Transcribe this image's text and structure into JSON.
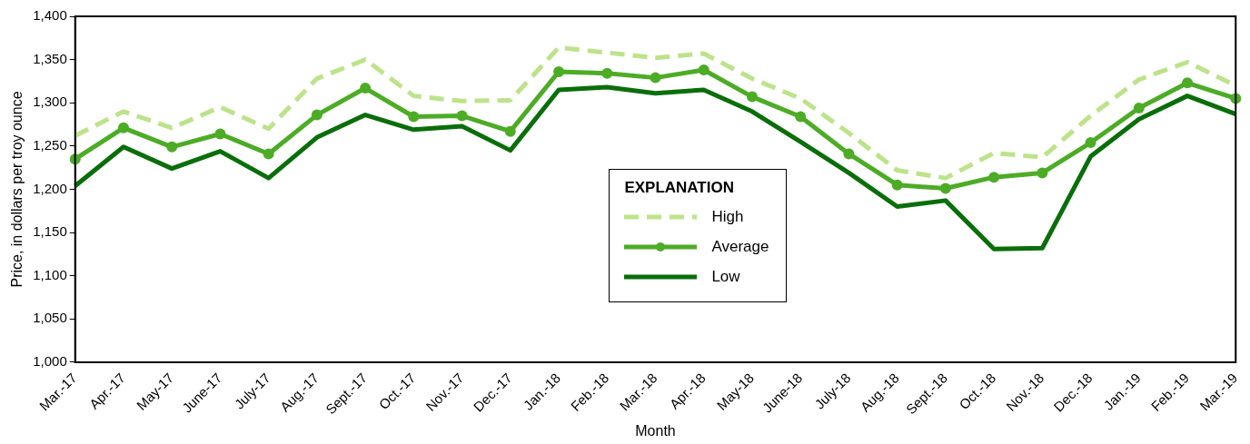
{
  "chart_data": {
    "type": "line",
    "xlabel": "Month",
    "ylabel": "Price, in dollars per troy ounce",
    "legend_title": "EXPLANATION",
    "legend": "center",
    "grid": false,
    "categories": [
      "Mar.-17",
      "Apr.-17",
      "May-17",
      "June-17",
      "July-17",
      "Aug.-17",
      "Sept.-17",
      "Oct.-17",
      "Nov.-17",
      "Dec.-17",
      "Jan.-18",
      "Feb.-18",
      "Mar.-18",
      "Apr.-18",
      "May-18",
      "June-18",
      "July-18",
      "Aug.-18",
      "Sept.-18",
      "Oct.-18",
      "Nov.-18",
      "Dec.-18",
      "Jan.-19",
      "Feb.-19",
      "Mar.-19"
    ],
    "ylim": [
      1000,
      1400
    ],
    "yticks": [
      {
        "value": 1000,
        "label": "1,000"
      },
      {
        "value": 1050,
        "label": "1,050"
      },
      {
        "value": 1100,
        "label": "1,100"
      },
      {
        "value": 1150,
        "label": "1,150"
      },
      {
        "value": 1200,
        "label": "1,200"
      },
      {
        "value": 1250,
        "label": "1,250"
      },
      {
        "value": 1300,
        "label": "1,300"
      },
      {
        "value": 1350,
        "label": "1,350"
      },
      {
        "value": 1400,
        "label": "1,400"
      }
    ],
    "series": [
      {
        "name": "High",
        "color": "#bde38a",
        "line_style": "dashed",
        "marker": "none",
        "values": [
          1262,
          1290,
          1271,
          1295,
          1270,
          1328,
          1350,
          1308,
          1302,
          1303,
          1364,
          1358,
          1352,
          1357,
          1328,
          1305,
          1265,
          1222,
          1213,
          1242,
          1237,
          1285,
          1327,
          1347,
          1320
        ]
      },
      {
        "name": "Average",
        "color": "#4dac26",
        "line_style": "solid",
        "marker": "circle",
        "values": [
          1235,
          1271,
          1249,
          1264,
          1241,
          1286,
          1317,
          1284,
          1285,
          1267,
          1336,
          1334,
          1329,
          1338,
          1307,
          1284,
          1241,
          1205,
          1201,
          1214,
          1219,
          1254,
          1294,
          1323,
          1305
        ]
      },
      {
        "name": "Low",
        "color": "#0a6e0a",
        "line_style": "solid",
        "marker": "none",
        "values": [
          1204,
          1249,
          1224,
          1244,
          1213,
          1260,
          1286,
          1269,
          1273,
          1245,
          1315,
          1318,
          1311,
          1315,
          1290,
          1255,
          1219,
          1180,
          1187,
          1131,
          1132,
          1238,
          1281,
          1308,
          1287
        ]
      }
    ]
  }
}
